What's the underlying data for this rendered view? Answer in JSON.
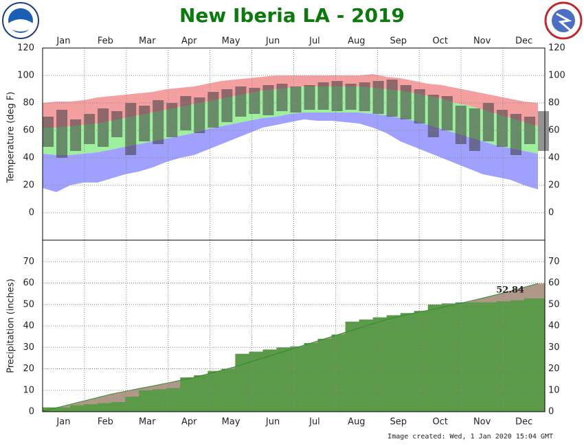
{
  "chart_data": [
    {
      "type": "temperature",
      "title": "New Iberia LA - 2019",
      "y_label": "Temperature (deg F)",
      "categories": [
        "Jan",
        "Feb",
        "Mar",
        "Apr",
        "May",
        "Jun",
        "Jul",
        "Aug",
        "Sep",
        "Oct",
        "Nov",
        "Dec"
      ],
      "x": [
        1,
        11,
        21,
        31,
        41,
        51,
        61,
        71,
        81,
        91,
        101,
        111,
        121,
        131,
        141,
        151,
        161,
        171,
        181,
        191,
        201,
        211,
        221,
        231,
        241,
        251,
        261,
        271,
        281,
        291,
        301,
        311,
        321,
        331,
        341,
        351,
        361
      ],
      "xlim": [
        1,
        366
      ],
      "ylim": [
        -20,
        120
      ],
      "yticks": [
        0,
        20,
        40,
        60,
        80,
        100,
        120
      ],
      "grid": true,
      "record_high": {
        "color": "#f4a0a0",
        "values": [
          80,
          81,
          81,
          82,
          84,
          85,
          86,
          87,
          88,
          90,
          91,
          92,
          94,
          96,
          97,
          98,
          99,
          100,
          100,
          100,
          100,
          100,
          100,
          100,
          101,
          99,
          98,
          96,
          94,
          93,
          91,
          89,
          87,
          85,
          83,
          81,
          80
        ]
      },
      "normal_high": {
        "color": "#9ef09e",
        "values": [
          62,
          62,
          63,
          64,
          65,
          67,
          69,
          71,
          73,
          75,
          77,
          79,
          81,
          83,
          85,
          87,
          89,
          90,
          91,
          92,
          92,
          92,
          92,
          92,
          91,
          90,
          89,
          87,
          85,
          83,
          80,
          78,
          75,
          72,
          69,
          66,
          63
        ]
      },
      "normal_low": {
        "color": "#a0a0ff",
        "values": [
          43,
          42,
          42,
          43,
          44,
          46,
          48,
          50,
          52,
          54,
          56,
          58,
          61,
          63,
          65,
          67,
          69,
          70,
          72,
          73,
          73,
          73,
          73,
          73,
          72,
          71,
          69,
          67,
          64,
          61,
          58,
          55,
          52,
          49,
          47,
          45,
          43
        ]
      },
      "record_low": {
        "color": "#a0a0ff",
        "values": [
          18,
          15,
          20,
          22,
          22,
          25,
          28,
          30,
          33,
          37,
          40,
          42,
          46,
          50,
          54,
          58,
          62,
          64,
          66,
          68,
          67,
          67,
          66,
          65,
          62,
          58,
          52,
          48,
          44,
          40,
          36,
          32,
          28,
          26,
          24,
          20,
          17
        ]
      },
      "actual_high": {
        "color": "#3a3a3a",
        "values": [
          70,
          75,
          68,
          72,
          76,
          74,
          80,
          78,
          82,
          80,
          85,
          84,
          88,
          90,
          92,
          91,
          93,
          94,
          92,
          93,
          95,
          96,
          94,
          95,
          96,
          97,
          93,
          90,
          86,
          85,
          78,
          76,
          80,
          75,
          72,
          70,
          74
        ]
      },
      "actual_low": {
        "color": "#3a3a3a",
        "values": [
          48,
          40,
          45,
          50,
          48,
          55,
          42,
          52,
          50,
          55,
          60,
          58,
          62,
          66,
          70,
          72,
          71,
          74,
          73,
          75,
          75,
          74,
          75,
          74,
          72,
          70,
          68,
          65,
          55,
          60,
          50,
          45,
          52,
          48,
          42,
          50,
          45
        ]
      }
    },
    {
      "type": "precipitation",
      "y_label": "Precipitation (inches)",
      "categories": [
        "Jan",
        "Feb",
        "Mar",
        "Apr",
        "May",
        "Jun",
        "Jul",
        "Aug",
        "Sep",
        "Oct",
        "Nov",
        "Dec"
      ],
      "x": [
        1,
        11,
        21,
        31,
        41,
        51,
        61,
        71,
        81,
        91,
        101,
        111,
        121,
        131,
        141,
        151,
        161,
        171,
        181,
        191,
        201,
        211,
        221,
        231,
        241,
        251,
        261,
        271,
        281,
        291,
        301,
        311,
        321,
        331,
        341,
        351,
        361
      ],
      "xlim": [
        1,
        366
      ],
      "ylim": [
        0,
        80
      ],
      "yticks": [
        0,
        10,
        20,
        30,
        40,
        50,
        60,
        70
      ],
      "grid": true,
      "normal": {
        "color": "#b09888",
        "values": [
          0.2,
          1.8,
          3.4,
          5,
          6.6,
          8.2,
          9.5,
          10.8,
          12,
          13.3,
          14.6,
          16,
          17.6,
          19.3,
          21,
          23,
          25,
          27,
          29,
          31,
          33,
          35,
          37,
          39,
          41,
          43,
          44.5,
          46,
          47.3,
          48.6,
          50,
          51.5,
          53,
          54.6,
          56.2,
          58,
          59.8
        ]
      },
      "actual": {
        "color": "#5a9a48",
        "values": [
          2,
          2,
          3,
          3.5,
          4,
          4.5,
          7,
          10,
          10.5,
          11,
          16,
          17,
          19,
          20,
          27,
          28,
          29,
          30,
          30.5,
          32,
          34,
          36,
          42,
          43,
          44,
          45,
          46,
          47,
          50,
          50.5,
          51,
          51,
          51,
          51.5,
          52,
          52.84,
          52.84
        ]
      }
    }
  ],
  "footer": "Image created: Wed, 1 Jan 2020 15:04 GMT"
}
